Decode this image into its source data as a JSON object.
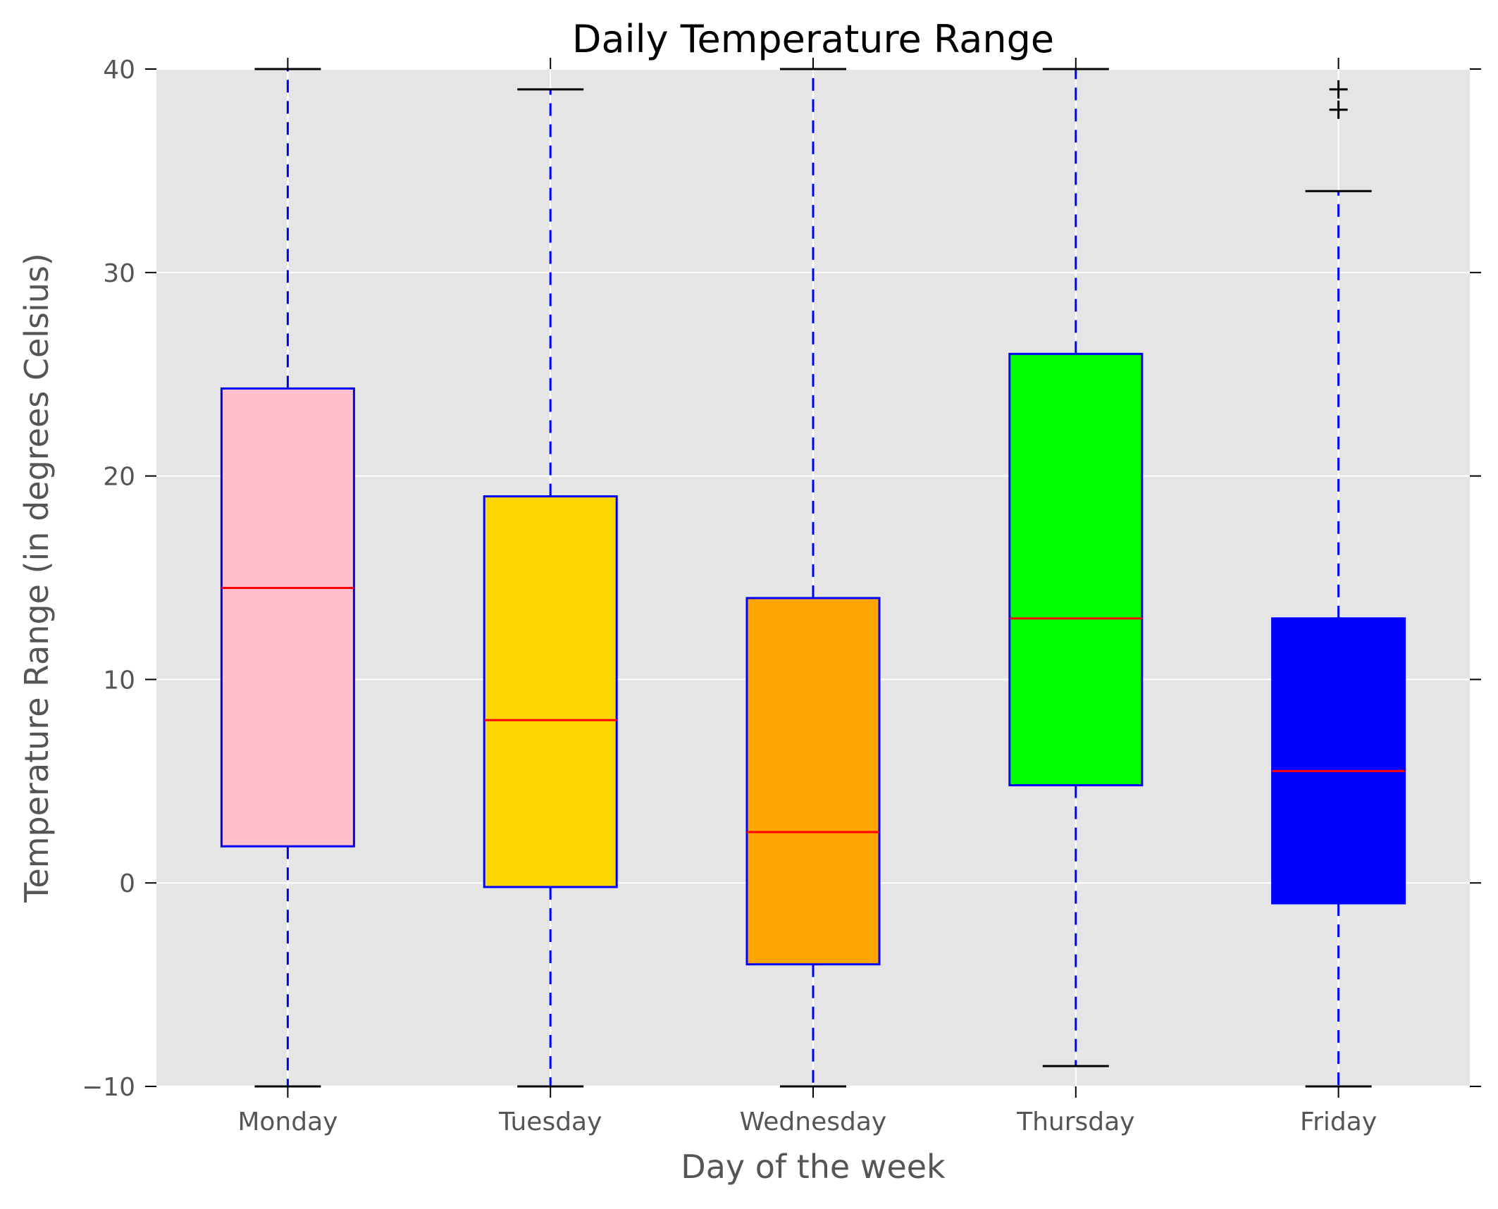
{
  "chart_data": {
    "type": "box",
    "title": "Daily Temperature Range",
    "xlabel": "Day of the week",
    "ylabel": "Temperature Range (in degrees Celsius)",
    "categories": [
      "Monday",
      "Tuesday",
      "Wednesday",
      "Thursday",
      "Friday"
    ],
    "ylim": [
      -10,
      40
    ],
    "yticks": [
      -10,
      0,
      10,
      20,
      30,
      40
    ],
    "grid": true,
    "boxes": [
      {
        "category": "Monday",
        "whisker_low": -10,
        "q1": 1.8,
        "median": 14.5,
        "q3": 24.3,
        "whisker_high": 40,
        "outliers": [],
        "color": "#ffc0cb"
      },
      {
        "category": "Tuesday",
        "whisker_low": -10,
        "q1": -0.2,
        "median": 8.0,
        "q3": 19.0,
        "whisker_high": 39,
        "outliers": [],
        "color": "#ffd700"
      },
      {
        "category": "Wednesday",
        "whisker_low": -10,
        "q1": -4.0,
        "median": 2.5,
        "q3": 14.0,
        "whisker_high": 40,
        "outliers": [],
        "color": "#ffa500"
      },
      {
        "category": "Thursday",
        "whisker_low": -9,
        "q1": 4.8,
        "median": 13.0,
        "q3": 26.0,
        "whisker_high": 40,
        "outliers": [],
        "color": "#00ff00"
      },
      {
        "category": "Friday",
        "whisker_low": -10,
        "q1": -1.0,
        "median": 5.5,
        "q3": 13.0,
        "whisker_high": 34,
        "outliers": [
          38,
          39
        ],
        "color": "#0000ff"
      }
    ],
    "colors": {
      "plot_background": "#e5e5e5",
      "grid": "#ffffff",
      "box_edge": "#0000ff",
      "whisker": "#0000ff",
      "median": "#ff0000",
      "cap": "#000000",
      "flier": "#000000"
    }
  }
}
